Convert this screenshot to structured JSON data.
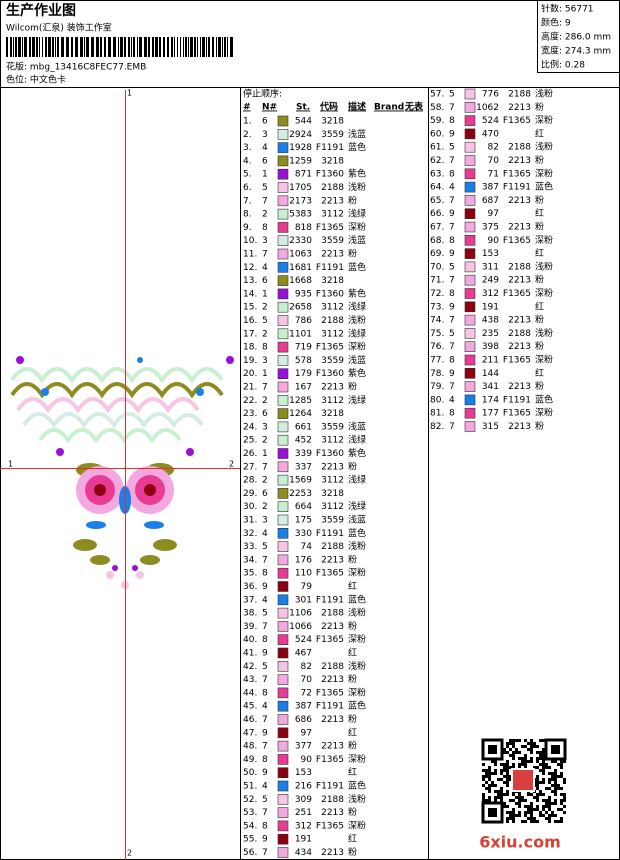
{
  "header": {
    "title": "生产作业图",
    "studio": "Wilcom(汇泉) 装饰工作室",
    "design_file": "花版: mbg_13416C8FEC77.EMB",
    "color_card": "色位: 中文色卡"
  },
  "info": [
    "针数: 56771",
    "颜色: 9",
    "高度: 286.0 mm",
    "宽度: 274.3 mm",
    "比例: 0.28"
  ],
  "axis_labels": {
    "top": "1",
    "bottom": "2",
    "left": "1",
    "right": "2"
  },
  "table": {
    "caption": "停止顺序:",
    "columns": [
      "#",
      "N#",
      "St.",
      "代码",
      "描述",
      "Brand",
      "无表"
    ],
    "needle_colors": {
      "1": "#9a10d8",
      "2": "#c8f0d0",
      "3": "#d4ece4",
      "4": "#1a80e8",
      "5": "#f8c4e4",
      "6": "#8c8c20",
      "7": "#f4a8e0",
      "8": "#e83c94",
      "9": "#8c0010"
    },
    "rows": [
      {
        "no": "1.",
        "n": "6",
        "st": 544,
        "code": "3218",
        "desc": null
      },
      {
        "no": "2.",
        "n": "3",
        "st": 2924,
        "code": "3559",
        "desc": "浅蓝"
      },
      {
        "no": "3.",
        "n": "4",
        "st": 1928,
        "code": "F1191",
        "desc": "蓝色"
      },
      {
        "no": "4.",
        "n": "6",
        "st": 1259,
        "code": "3218",
        "desc": null
      },
      {
        "no": "5.",
        "n": "1",
        "st": 871,
        "code": "F1360",
        "desc": "紫色"
      },
      {
        "no": "6.",
        "n": "5",
        "st": 1705,
        "code": "2188",
        "desc": "浅粉"
      },
      {
        "no": "7.",
        "n": "7",
        "st": 2173,
        "code": "2213",
        "desc": "粉"
      },
      {
        "no": "8.",
        "n": "2",
        "st": 5383,
        "code": "3112",
        "desc": "浅绿"
      },
      {
        "no": "9.",
        "n": "8",
        "st": 818,
        "code": "F1365",
        "desc": "深粉"
      },
      {
        "no": "10.",
        "n": "3",
        "st": 2330,
        "code": "3559",
        "desc": "浅蓝"
      },
      {
        "no": "11.",
        "n": "7",
        "st": 1063,
        "code": "2213",
        "desc": "粉"
      },
      {
        "no": "12.",
        "n": "4",
        "st": 1681,
        "code": "F1191",
        "desc": "蓝色"
      },
      {
        "no": "13.",
        "n": "6",
        "st": 1668,
        "code": "3218",
        "desc": null
      },
      {
        "no": "14.",
        "n": "1",
        "st": 935,
        "code": "F1360",
        "desc": "紫色"
      },
      {
        "no": "15.",
        "n": "2",
        "st": 2658,
        "code": "3112",
        "desc": "浅绿"
      },
      {
        "no": "16.",
        "n": "5",
        "st": 786,
        "code": "2188",
        "desc": "浅粉"
      },
      {
        "no": "17.",
        "n": "2",
        "st": 1101,
        "code": "3112",
        "desc": "浅绿"
      },
      {
        "no": "18.",
        "n": "8",
        "st": 719,
        "code": "F1365",
        "desc": "深粉"
      },
      {
        "no": "19.",
        "n": "3",
        "st": 578,
        "code": "3559",
        "desc": "浅蓝"
      },
      {
        "no": "20.",
        "n": "1",
        "st": 179,
        "code": "F1360",
        "desc": "紫色"
      },
      {
        "no": "21.",
        "n": "7",
        "st": 167,
        "code": "2213",
        "desc": "粉"
      },
      {
        "no": "22.",
        "n": "2",
        "st": 1285,
        "code": "3112",
        "desc": "浅绿"
      },
      {
        "no": "23.",
        "n": "6",
        "st": 1264,
        "code": "3218",
        "desc": null
      },
      {
        "no": "24.",
        "n": "3",
        "st": 661,
        "code": "3559",
        "desc": "浅蓝"
      },
      {
        "no": "25.",
        "n": "2",
        "st": 452,
        "code": "3112",
        "desc": "浅绿"
      },
      {
        "no": "26.",
        "n": "1",
        "st": 339,
        "code": "F1360",
        "desc": "紫色"
      },
      {
        "no": "27.",
        "n": "7",
        "st": 337,
        "code": "2213",
        "desc": "粉"
      },
      {
        "no": "28.",
        "n": "2",
        "st": 1569,
        "code": "3112",
        "desc": "浅绿"
      },
      {
        "no": "29.",
        "n": "6",
        "st": 2253,
        "code": "3218",
        "desc": null
      },
      {
        "no": "30.",
        "n": "2",
        "st": 664,
        "code": "3112",
        "desc": "浅绿"
      },
      {
        "no": "31.",
        "n": "3",
        "st": 175,
        "code": "3559",
        "desc": "浅蓝"
      },
      {
        "no": "32.",
        "n": "4",
        "st": 330,
        "code": "F1191",
        "desc": "蓝色"
      },
      {
        "no": "33.",
        "n": "5",
        "st": 74,
        "code": "2188",
        "desc": "浅粉"
      },
      {
        "no": "34.",
        "n": "7",
        "st": 176,
        "code": "2213",
        "desc": "粉"
      },
      {
        "no": "35.",
        "n": "8",
        "st": 110,
        "code": "F1365",
        "desc": "深粉"
      },
      {
        "no": "36.",
        "n": "9",
        "st": 79,
        "code": null,
        "desc": "红"
      },
      {
        "no": "37.",
        "n": "4",
        "st": 301,
        "code": "F1191",
        "desc": "蓝色"
      },
      {
        "no": "38.",
        "n": "5",
        "st": 1106,
        "code": "2188",
        "desc": "浅粉"
      },
      {
        "no": "39.",
        "n": "7",
        "st": 1066,
        "code": "2213",
        "desc": "粉"
      },
      {
        "no": "40.",
        "n": "8",
        "st": 524,
        "code": "F1365",
        "desc": "深粉"
      },
      {
        "no": "41.",
        "n": "9",
        "st": 467,
        "code": null,
        "desc": "红"
      },
      {
        "no": "42.",
        "n": "5",
        "st": 82,
        "code": "2188",
        "desc": "浅粉"
      },
      {
        "no": "43.",
        "n": "7",
        "st": 70,
        "code": "2213",
        "desc": "粉"
      },
      {
        "no": "44.",
        "n": "8",
        "st": 72,
        "code": "F1365",
        "desc": "深粉"
      },
      {
        "no": "45.",
        "n": "4",
        "st": 387,
        "code": "F1191",
        "desc": "蓝色"
      },
      {
        "no": "46.",
        "n": "7",
        "st": 686,
        "code": "2213",
        "desc": "粉"
      },
      {
        "no": "47.",
        "n": "9",
        "st": 97,
        "code": null,
        "desc": "红"
      },
      {
        "no": "48.",
        "n": "7",
        "st": 377,
        "code": "2213",
        "desc": "粉"
      },
      {
        "no": "49.",
        "n": "8",
        "st": 90,
        "code": "F1365",
        "desc": "深粉"
      },
      {
        "no": "50.",
        "n": "9",
        "st": 153,
        "code": null,
        "desc": "红"
      },
      {
        "no": "51.",
        "n": "4",
        "st": 216,
        "code": "F1191",
        "desc": "蓝色"
      },
      {
        "no": "52.",
        "n": "5",
        "st": 309,
        "code": "2188",
        "desc": "浅粉"
      },
      {
        "no": "53.",
        "n": "7",
        "st": 251,
        "code": "2213",
        "desc": "粉"
      },
      {
        "no": "54.",
        "n": "8",
        "st": 312,
        "code": "F1365",
        "desc": "深粉"
      },
      {
        "no": "55.",
        "n": "9",
        "st": 191,
        "code": null,
        "desc": "红"
      },
      {
        "no": "56.",
        "n": "7",
        "st": 434,
        "code": "2213",
        "desc": "粉"
      },
      {
        "no": "57.",
        "n": "5",
        "st": 776,
        "code": "2188",
        "desc": "浅粉"
      },
      {
        "no": "58.",
        "n": "7",
        "st": 1062,
        "code": "2213",
        "desc": "粉"
      },
      {
        "no": "59.",
        "n": "8",
        "st": 524,
        "code": "F1365",
        "desc": "深粉"
      },
      {
        "no": "60.",
        "n": "9",
        "st": 470,
        "code": null,
        "desc": "红"
      },
      {
        "no": "61.",
        "n": "5",
        "st": 82,
        "code": "2188",
        "desc": "浅粉"
      },
      {
        "no": "62.",
        "n": "7",
        "st": 70,
        "code": "2213",
        "desc": "粉"
      },
      {
        "no": "63.",
        "n": "8",
        "st": 71,
        "code": "F1365",
        "desc": "深粉"
      },
      {
        "no": "64.",
        "n": "4",
        "st": 387,
        "code": "F1191",
        "desc": "蓝色"
      },
      {
        "no": "65.",
        "n": "7",
        "st": 687,
        "code": "2213",
        "desc": "粉"
      },
      {
        "no": "66.",
        "n": "9",
        "st": 97,
        "code": null,
        "desc": "红"
      },
      {
        "no": "67.",
        "n": "7",
        "st": 375,
        "code": "2213",
        "desc": "粉"
      },
      {
        "no": "68.",
        "n": "8",
        "st": 90,
        "code": "F1365",
        "desc": "深粉"
      },
      {
        "no": "69.",
        "n": "9",
        "st": 153,
        "code": null,
        "desc": "红"
      },
      {
        "no": "70.",
        "n": "5",
        "st": 311,
        "code": "2188",
        "desc": "浅粉"
      },
      {
        "no": "71.",
        "n": "7",
        "st": 249,
        "code": "2213",
        "desc": "粉"
      },
      {
        "no": "72.",
        "n": "8",
        "st": 312,
        "code": "F1365",
        "desc": "深粉"
      },
      {
        "no": "73.",
        "n": "9",
        "st": 191,
        "code": null,
        "desc": "红"
      },
      {
        "no": "74.",
        "n": "7",
        "st": 438,
        "code": "2213",
        "desc": "粉"
      },
      {
        "no": "75.",
        "n": "5",
        "st": 235,
        "code": "2188",
        "desc": "浅粉"
      },
      {
        "no": "76.",
        "n": "7",
        "st": 398,
        "code": "2213",
        "desc": "粉"
      },
      {
        "no": "77.",
        "n": "8",
        "st": 211,
        "code": "F1365",
        "desc": "深粉"
      },
      {
        "no": "78.",
        "n": "9",
        "st": 144,
        "code": null,
        "desc": "红"
      },
      {
        "no": "79.",
        "n": "7",
        "st": 341,
        "code": "2213",
        "desc": "粉"
      },
      {
        "no": "80.",
        "n": "4",
        "st": 174,
        "code": "F1191",
        "desc": "蓝色"
      },
      {
        "no": "81.",
        "n": "8",
        "st": 177,
        "code": "F1365",
        "desc": "深粉"
      },
      {
        "no": "82.",
        "n": "7",
        "st": 315,
        "code": "2213",
        "desc": "粉"
      }
    ]
  },
  "watermark": "6xiu.com"
}
